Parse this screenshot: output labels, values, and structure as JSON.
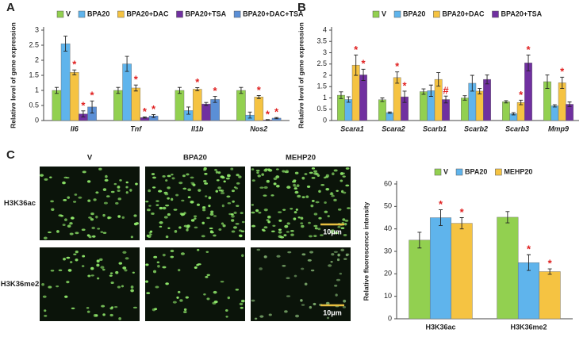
{
  "chart_data": [
    {
      "type": "bar",
      "panel_label": "A",
      "y_label": "Relative level of gene expression",
      "categories": [
        "Il6",
        "Tnf",
        "Il1b",
        "Nos2"
      ],
      "ylim": [
        0,
        3
      ],
      "yticks": [
        0,
        0.5,
        1,
        1.5,
        2,
        2.5,
        3
      ],
      "series": [
        {
          "name": "V",
          "color": "#92d050",
          "values": [
            1,
            1,
            1,
            1
          ],
          "errors": [
            0.1,
            0.1,
            0.1,
            0.1
          ],
          "markers": [
            null,
            null,
            null,
            null
          ]
        },
        {
          "name": "BPA20",
          "color": "#5fb4ec",
          "values": [
            2.55,
            1.88,
            0.33,
            0.18
          ],
          "errors": [
            0.25,
            0.25,
            0.12,
            0.1
          ],
          "markers": [
            null,
            null,
            null,
            null
          ]
        },
        {
          "name": "BPA20+DAC",
          "color": "#f5c342",
          "values": [
            1.6,
            1.08,
            1.04,
            0.78
          ],
          "errors": [
            0.08,
            0.1,
            0.05,
            0.05
          ],
          "markers": [
            "*",
            "*",
            "*",
            "*"
          ]
        },
        {
          "name": "BPA20+TSA",
          "color": "#7030a0",
          "values": [
            0.22,
            0.1,
            0.55,
            0.02
          ],
          "errors": [
            0.1,
            0.02,
            0.05,
            0.01
          ],
          "markers": [
            "*",
            "*",
            null,
            "*"
          ]
        },
        {
          "name": "BPA20+DAC+TSA",
          "color": "#5b8fd6",
          "values": [
            0.45,
            0.15,
            0.7,
            0.08
          ],
          "errors": [
            0.2,
            0.05,
            0.1,
            0.02
          ],
          "markers": [
            "*",
            "*",
            "*",
            "*"
          ]
        }
      ]
    },
    {
      "type": "bar",
      "panel_label": "B",
      "y_label": "Relative level of gene expression",
      "categories": [
        "Scara1",
        "Scara2",
        "Scarb1",
        "Scarb2",
        "Scarb3",
        "Mmp9"
      ],
      "ylim": [
        0,
        4
      ],
      "yticks": [
        0,
        0.5,
        1,
        1.5,
        2,
        2.5,
        3,
        3.5,
        4
      ],
      "series": [
        {
          "name": "V",
          "color": "#92d050",
          "values": [
            1.12,
            0.92,
            1.28,
            1.0,
            0.83,
            1.72
          ],
          "errors": [
            0.15,
            0.08,
            0.12,
            0.1,
            0.05,
            0.3
          ],
          "markers": [
            null,
            null,
            null,
            null,
            null,
            null
          ]
        },
        {
          "name": "BPA20",
          "color": "#5fb4ec",
          "values": [
            0.93,
            0.35,
            1.32,
            1.65,
            0.3,
            0.65
          ],
          "errors": [
            0.12,
            0.03,
            0.25,
            0.35,
            0.05,
            0.05
          ],
          "markers": [
            null,
            null,
            null,
            null,
            null,
            null
          ]
        },
        {
          "name": "BPA20+DAC",
          "color": "#f5c342",
          "values": [
            2.45,
            1.9,
            1.82,
            1.3,
            0.8,
            1.67
          ],
          "errors": [
            0.45,
            0.25,
            0.3,
            0.12,
            0.1,
            0.25
          ],
          "markers": [
            "*",
            "*",
            null,
            null,
            "*",
            "*"
          ]
        },
        {
          "name": "BPA20+TSA",
          "color": "#7030a0",
          "values": [
            2.02,
            1.05,
            0.93,
            1.82,
            2.55,
            0.72
          ],
          "errors": [
            0.25,
            0.25,
            0.15,
            0.2,
            0.35,
            0.1
          ],
          "markers": [
            "*",
            "*",
            "#",
            null,
            "*",
            null
          ]
        }
      ]
    },
    {
      "type": "bar",
      "panel_label": "C",
      "y_label": "Relative fluorescence intensity",
      "categories": [
        "H3K36ac",
        "H3K36me2"
      ],
      "ylim": [
        0,
        60
      ],
      "yticks": [
        0,
        10,
        20,
        30,
        40,
        50,
        60
      ],
      "series": [
        {
          "name": "V",
          "color": "#92d050",
          "values": [
            35,
            45.2
          ],
          "errors": [
            3.5,
            2.5
          ],
          "markers": [
            null,
            null
          ]
        },
        {
          "name": "BPA20",
          "color": "#5fb4ec",
          "values": [
            45,
            25
          ],
          "errors": [
            3.5,
            3.5
          ],
          "markers": [
            "*",
            "*"
          ]
        },
        {
          "name": "MEHP20",
          "color": "#f5c342",
          "values": [
            42.5,
            21
          ],
          "errors": [
            2.5,
            1.2
          ],
          "markers": [
            "*",
            "*"
          ]
        }
      ]
    }
  ],
  "images": {
    "columns": [
      "V",
      "BPA20",
      "MEHP20"
    ],
    "rows": [
      "H3K36ac",
      "H3K36me2"
    ],
    "scale_bar": "10μm"
  }
}
